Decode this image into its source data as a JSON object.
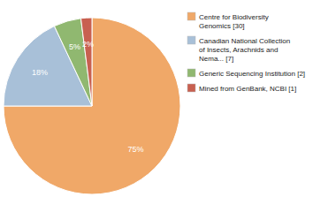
{
  "chart_data": {
    "type": "pie",
    "categories": [
      "Centre for Biodiversity\nGenomics [30]",
      "Canadian National Collection\nof Insects, Arachnids and\nNema... [7]",
      "Generic Sequencing Institution [2]",
      "Mined from GenBank, NCBI [1]"
    ],
    "values": [
      75,
      18,
      5,
      2
    ],
    "value_labels": [
      "75%",
      "18%",
      "5%",
      "2%"
    ],
    "colors": [
      "#F0A868",
      "#A8C0D8",
      "#90B870",
      "#C86050"
    ],
    "data_labels": true,
    "legend": "right"
  }
}
